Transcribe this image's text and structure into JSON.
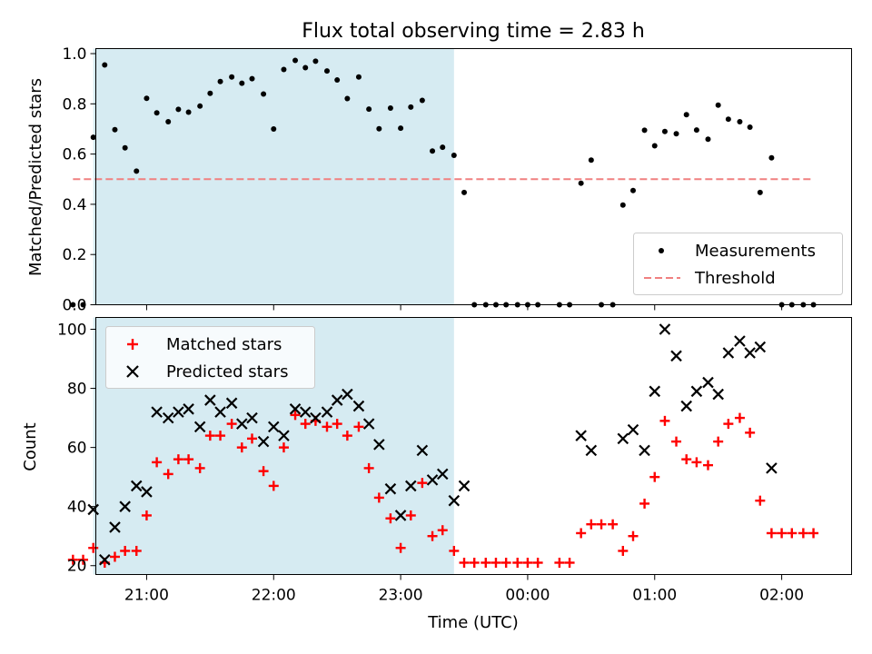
{
  "chart_data": [
    {
      "type": "scatter",
      "title": "Flux total observing time = 2.83 h",
      "ylabel": "Matched/Predicted stars",
      "ylim": [
        0.0,
        1.02
      ],
      "yticks": [
        0.0,
        0.2,
        0.4,
        0.6,
        0.8,
        1.0
      ],
      "ytick_labels": [
        "0.0",
        "0.2",
        "0.4",
        "0.6",
        "0.8",
        "1.0"
      ],
      "xlim": [
        20.6,
        26.55
      ],
      "legend": {
        "position": "lower-right",
        "entries": [
          "Measurements",
          "Threshold"
        ]
      },
      "highlight_span": {
        "from": 20.58,
        "to": 23.42,
        "color": "#add8e6"
      },
      "threshold": {
        "value": 0.5,
        "x_from": 20.42,
        "x_to": 26.25,
        "color": "#f08080",
        "style": "dashed"
      },
      "series": [
        {
          "name": "Measurements",
          "color": "#000000",
          "points": [
            [
              20.42,
              0.0
            ],
            [
              20.5,
              0.0
            ],
            [
              20.58,
              0.667
            ],
            [
              20.67,
              0.955
            ],
            [
              20.75,
              0.697
            ],
            [
              20.83,
              0.625
            ],
            [
              20.92,
              0.532
            ],
            [
              21.0,
              0.822
            ],
            [
              21.08,
              0.764
            ],
            [
              21.17,
              0.729
            ],
            [
              21.25,
              0.778
            ],
            [
              21.33,
              0.767
            ],
            [
              21.42,
              0.791
            ],
            [
              21.5,
              0.842
            ],
            [
              21.58,
              0.889
            ],
            [
              21.67,
              0.907
            ],
            [
              21.75,
              0.882
            ],
            [
              21.83,
              0.9
            ],
            [
              21.92,
              0.839
            ],
            [
              22.0,
              0.7
            ],
            [
              22.08,
              0.937
            ],
            [
              22.17,
              0.973
            ],
            [
              22.25,
              0.944
            ],
            [
              22.33,
              0.97
            ],
            [
              22.42,
              0.931
            ],
            [
              22.5,
              0.895
            ],
            [
              22.58,
              0.821
            ],
            [
              22.67,
              0.907
            ],
            [
              22.75,
              0.779
            ],
            [
              22.83,
              0.701
            ],
            [
              22.92,
              0.783
            ],
            [
              23.0,
              0.703
            ],
            [
              23.08,
              0.787
            ],
            [
              23.17,
              0.814
            ],
            [
              23.25,
              0.612
            ],
            [
              23.33,
              0.627
            ],
            [
              23.42,
              0.595
            ],
            [
              23.5,
              0.447
            ],
            [
              23.58,
              0.0
            ],
            [
              23.67,
              0.0
            ],
            [
              23.75,
              0.0
            ],
            [
              23.83,
              0.0
            ],
            [
              23.92,
              0.0
            ],
            [
              24.0,
              0.0
            ],
            [
              24.08,
              0.0
            ],
            [
              24.25,
              0.0
            ],
            [
              24.33,
              0.0
            ],
            [
              24.42,
              0.484
            ],
            [
              24.5,
              0.576
            ],
            [
              24.58,
              0.0
            ],
            [
              24.67,
              0.0
            ],
            [
              24.75,
              0.397
            ],
            [
              24.83,
              0.455
            ],
            [
              24.92,
              0.695
            ],
            [
              25.0,
              0.633
            ],
            [
              25.08,
              0.69
            ],
            [
              25.17,
              0.681
            ],
            [
              25.25,
              0.757
            ],
            [
              25.33,
              0.696
            ],
            [
              25.42,
              0.659
            ],
            [
              25.5,
              0.795
            ],
            [
              25.58,
              0.739
            ],
            [
              25.67,
              0.729
            ],
            [
              25.75,
              0.707
            ],
            [
              25.83,
              0.447
            ],
            [
              25.92,
              0.585
            ],
            [
              26.0,
              0.0
            ],
            [
              26.08,
              0.0
            ],
            [
              26.17,
              0.0
            ],
            [
              26.25,
              0.0
            ]
          ]
        }
      ]
    },
    {
      "type": "scatter",
      "xlabel": "Time (UTC)",
      "ylabel": "Count",
      "ylim": [
        17,
        104
      ],
      "yticks": [
        20,
        40,
        60,
        80,
        100
      ],
      "ytick_labels": [
        "20",
        "40",
        "60",
        "80",
        "100"
      ],
      "xlim": [
        20.6,
        26.55
      ],
      "xticks": [
        21,
        22,
        23,
        24,
        25,
        26
      ],
      "xtick_labels": [
        "21:00",
        "22:00",
        "23:00",
        "00:00",
        "01:00",
        "02:00"
      ],
      "legend": {
        "position": "upper-left",
        "entries": [
          "Matched stars",
          "Predicted stars"
        ]
      },
      "highlight_span": {
        "from": 20.58,
        "to": 23.42,
        "color": "#add8e6"
      },
      "series": [
        {
          "name": "Matched stars",
          "marker": "plus",
          "color": "#ff0000",
          "points": [
            [
              20.42,
              22
            ],
            [
              20.5,
              22
            ],
            [
              20.58,
              26
            ],
            [
              20.67,
              21
            ],
            [
              20.75,
              23
            ],
            [
              20.83,
              25
            ],
            [
              20.92,
              25
            ],
            [
              21.0,
              37
            ],
            [
              21.08,
              55
            ],
            [
              21.17,
              51
            ],
            [
              21.25,
              56
            ],
            [
              21.33,
              56
            ],
            [
              21.42,
              53
            ],
            [
              21.5,
              64
            ],
            [
              21.58,
              64
            ],
            [
              21.67,
              68
            ],
            [
              21.75,
              60
            ],
            [
              21.83,
              63
            ],
            [
              21.92,
              52
            ],
            [
              22.0,
              47
            ],
            [
              22.08,
              60
            ],
            [
              22.17,
              71
            ],
            [
              22.25,
              68
            ],
            [
              22.33,
              69
            ],
            [
              22.42,
              67
            ],
            [
              22.5,
              68
            ],
            [
              22.58,
              64
            ],
            [
              22.67,
              67
            ],
            [
              22.75,
              53
            ],
            [
              22.83,
              43
            ],
            [
              22.92,
              36
            ],
            [
              23.0,
              26
            ],
            [
              23.08,
              37
            ],
            [
              23.17,
              48
            ],
            [
              23.25,
              30
            ],
            [
              23.33,
              32
            ],
            [
              23.42,
              25
            ],
            [
              23.5,
              21
            ],
            [
              23.58,
              21
            ],
            [
              23.67,
              21
            ],
            [
              23.75,
              21
            ],
            [
              23.83,
              21
            ],
            [
              23.92,
              21
            ],
            [
              24.0,
              21
            ],
            [
              24.08,
              21
            ],
            [
              24.25,
              21
            ],
            [
              24.33,
              21
            ],
            [
              24.42,
              31
            ],
            [
              24.5,
              34
            ],
            [
              24.58,
              34
            ],
            [
              24.67,
              34
            ],
            [
              24.75,
              25
            ],
            [
              24.83,
              30
            ],
            [
              24.92,
              41
            ],
            [
              25.0,
              50
            ],
            [
              25.08,
              69
            ],
            [
              25.17,
              62
            ],
            [
              25.25,
              56
            ],
            [
              25.33,
              55
            ],
            [
              25.42,
              54
            ],
            [
              25.5,
              62
            ],
            [
              25.58,
              68
            ],
            [
              25.67,
              70
            ],
            [
              25.75,
              65
            ],
            [
              25.83,
              42
            ],
            [
              25.92,
              31
            ],
            [
              26.0,
              31
            ],
            [
              26.08,
              31
            ],
            [
              26.17,
              31
            ],
            [
              26.25,
              31
            ]
          ]
        },
        {
          "name": "Predicted stars",
          "marker": "x",
          "color": "#000000",
          "points": [
            [
              20.58,
              39
            ],
            [
              20.67,
              22
            ],
            [
              20.75,
              33
            ],
            [
              20.83,
              40
            ],
            [
              20.92,
              47
            ],
            [
              21.0,
              45
            ],
            [
              21.08,
              72
            ],
            [
              21.17,
              70
            ],
            [
              21.25,
              72
            ],
            [
              21.33,
              73
            ],
            [
              21.42,
              67
            ],
            [
              21.5,
              76
            ],
            [
              21.58,
              72
            ],
            [
              21.67,
              75
            ],
            [
              21.75,
              68
            ],
            [
              21.83,
              70
            ],
            [
              21.92,
              62
            ],
            [
              22.0,
              67
            ],
            [
              22.08,
              64
            ],
            [
              22.17,
              73
            ],
            [
              22.25,
              72
            ],
            [
              22.33,
              70
            ],
            [
              22.42,
              72
            ],
            [
              22.5,
              76
            ],
            [
              22.58,
              78
            ],
            [
              22.67,
              74
            ],
            [
              22.75,
              68
            ],
            [
              22.83,
              61
            ],
            [
              22.92,
              46
            ],
            [
              23.0,
              37
            ],
            [
              23.08,
              47
            ],
            [
              23.17,
              59
            ],
            [
              23.25,
              49
            ],
            [
              23.33,
              51
            ],
            [
              23.42,
              42
            ],
            [
              23.5,
              47
            ],
            [
              24.42,
              64
            ],
            [
              24.5,
              59
            ],
            [
              24.75,
              63
            ],
            [
              24.83,
              66
            ],
            [
              24.92,
              59
            ],
            [
              25.0,
              79
            ],
            [
              25.08,
              100
            ],
            [
              25.17,
              91
            ],
            [
              25.25,
              74
            ],
            [
              25.33,
              79
            ],
            [
              25.42,
              82
            ],
            [
              25.5,
              78
            ],
            [
              25.58,
              92
            ],
            [
              25.67,
              96
            ],
            [
              25.75,
              92
            ],
            [
              25.83,
              94
            ],
            [
              25.92,
              53
            ]
          ]
        }
      ]
    }
  ]
}
